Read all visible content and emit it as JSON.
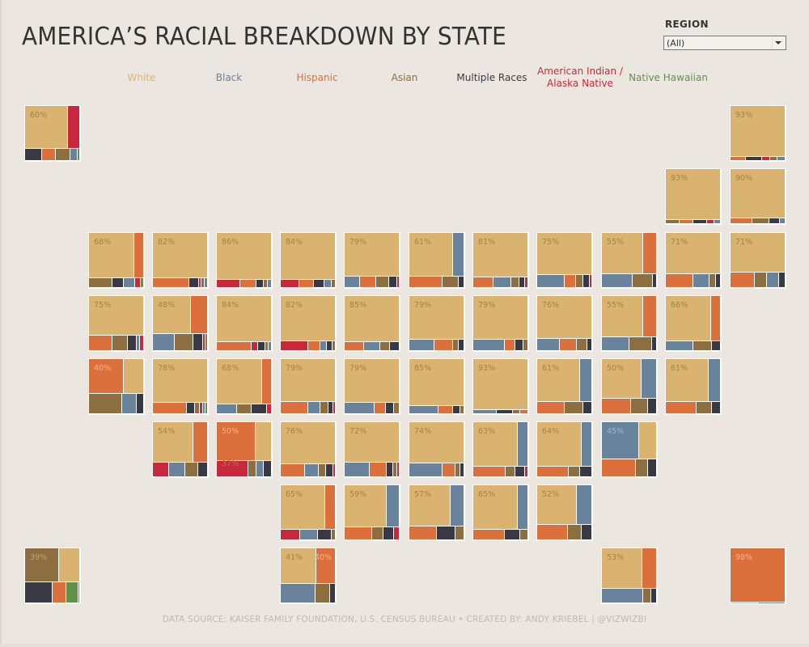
{
  "title": "AMERICA’S RACIAL BREAKDOWN BY STATE",
  "filter": {
    "label": "REGION",
    "selected": "(All)"
  },
  "footer": "DATA SOURCE: KAISER FAMILY FOUNDATION, U.S. CENSUS BUREAU  •  CREATED BY: ANDY KRIEBEL | @VIZWIZBI",
  "colors": {
    "white": "#dbb370",
    "black": "#68839b",
    "hispanic": "#dc703d",
    "asian": "#8c6e40",
    "multiple": "#393946",
    "aian": "#c8283c",
    "nhpi": "#62914b"
  },
  "legend": [
    {
      "key": "white",
      "label": "White"
    },
    {
      "key": "black",
      "label": "Black"
    },
    {
      "key": "hispanic",
      "label": "Hispanic"
    },
    {
      "key": "asian",
      "label": "Asian"
    },
    {
      "key": "multiple",
      "label": "Multiple Races"
    },
    {
      "key": "aian",
      "label": "American Indian / Alaska Native"
    },
    {
      "key": "nhpi",
      "label": "Native Hawaiian"
    }
  ],
  "chart_data": {
    "type": "treemap-tile-grid",
    "title": "AMERICA’S RACIAL BREAKDOWN BY STATE",
    "value_unit": "percent of state population",
    "categories": [
      "white",
      "black",
      "hispanic",
      "asian",
      "multiple",
      "aian",
      "nhpi"
    ],
    "states": [
      {
        "grid": [
          0,
          0
        ],
        "label": "60%",
        "values": {
          "white": 60,
          "aian": 14,
          "multiple": 7,
          "hispanic": 6,
          "asian": 6,
          "black": 3,
          "nhpi": 1
        }
      },
      {
        "grid": [
          11,
          0
        ],
        "label": "93%",
        "values": {
          "white": 93,
          "hispanic": 2,
          "multiple": 2,
          "aian": 1,
          "asian": 1,
          "black": 1
        }
      },
      {
        "grid": [
          10,
          1
        ],
        "label": "93%",
        "values": {
          "white": 93,
          "asian": 2,
          "hispanic": 2,
          "multiple": 2,
          "aian": 1,
          "black": 1
        }
      },
      {
        "grid": [
          11,
          1
        ],
        "label": "90%",
        "values": {
          "white": 90,
          "hispanic": 4,
          "asian": 3,
          "multiple": 2,
          "black": 1
        }
      },
      {
        "grid": [
          1,
          2
        ],
        "label": "68%",
        "values": {
          "white": 68,
          "hispanic": 12,
          "asian": 8,
          "multiple": 4,
          "black": 4,
          "aian": 2,
          "nhpi": 1
        }
      },
      {
        "grid": [
          2,
          2
        ],
        "label": "82%",
        "values": {
          "white": 82,
          "hispanic": 12,
          "multiple": 3,
          "aian": 1,
          "asian": 1,
          "black": 1
        }
      },
      {
        "grid": [
          3,
          2
        ],
        "label": "86%",
        "values": {
          "white": 86,
          "aian": 6,
          "hispanic": 4,
          "multiple": 2,
          "asian": 1,
          "black": 1
        }
      },
      {
        "grid": [
          4,
          2
        ],
        "label": "84%",
        "values": {
          "white": 84,
          "aian": 5,
          "hispanic": 4,
          "multiple": 3,
          "black": 2,
          "asian": 1
        }
      },
      {
        "grid": [
          5,
          2
        ],
        "label": "79%",
        "values": {
          "white": 79,
          "black": 6,
          "hispanic": 6,
          "asian": 5,
          "multiple": 3,
          "aian": 1
        }
      },
      {
        "grid": [
          6,
          2
        ],
        "label": "61%",
        "values": {
          "white": 61,
          "black": 15,
          "hispanic": 12,
          "asian": 6,
          "multiple": 2
        }
      },
      {
        "grid": [
          7,
          2
        ],
        "label": "81%",
        "values": {
          "white": 81,
          "hispanic": 7,
          "black": 6,
          "asian": 3,
          "multiple": 2,
          "aian": 1
        }
      },
      {
        "grid": [
          8,
          2
        ],
        "label": "75%",
        "values": {
          "white": 75,
          "black": 12,
          "hispanic": 5,
          "asian": 3,
          "multiple": 3,
          "aian": 1
        }
      },
      {
        "grid": [
          9,
          2
        ],
        "label": "55%",
        "values": {
          "white": 55,
          "hispanic": 19,
          "black": 14,
          "asian": 9,
          "multiple": 2
        }
      },
      {
        "grid": [
          10,
          2
        ],
        "label": "71%",
        "values": {
          "white": 71,
          "hispanic": 12,
          "black": 7,
          "asian": 3,
          "multiple": 2
        }
      },
      {
        "grid": [
          11,
          2
        ],
        "label": "71%",
        "values": {
          "white": 71,
          "hispanic": 12,
          "asian": 6,
          "black": 6,
          "multiple": 3
        }
      },
      {
        "grid": [
          1,
          3
        ],
        "label": "75%",
        "values": {
          "white": 75,
          "hispanic": 13,
          "asian": 8,
          "multiple": 5,
          "black": 2,
          "aian": 2
        }
      },
      {
        "grid": [
          2,
          3
        ],
        "label": "48%",
        "values": {
          "white": 48,
          "hispanic": 28,
          "black": 9,
          "asian": 8,
          "multiple": 4,
          "aian": 1,
          "nhpi": 1
        }
      },
      {
        "grid": [
          3,
          3
        ],
        "label": "84%",
        "values": {
          "white": 84,
          "hispanic": 10,
          "aian": 2,
          "multiple": 2,
          "asian": 1,
          "black": 1
        }
      },
      {
        "grid": [
          4,
          3
        ],
        "label": "82%",
        "values": {
          "white": 82,
          "aian": 9,
          "hispanic": 4,
          "black": 2,
          "multiple": 2,
          "asian": 1
        }
      },
      {
        "grid": [
          5,
          3
        ],
        "label": "85%",
        "values": {
          "white": 85,
          "hispanic": 6,
          "black": 5,
          "asian": 3,
          "multiple": 3
        }
      },
      {
        "grid": [
          6,
          3
        ],
        "label": "79%",
        "values": {
          "white": 79,
          "black": 9,
          "hispanic": 7,
          "asian": 2,
          "multiple": 2
        }
      },
      {
        "grid": [
          7,
          3
        ],
        "label": "79%",
        "values": {
          "white": 79,
          "black": 12,
          "hispanic": 4,
          "multiple": 3,
          "asian": 2
        }
      },
      {
        "grid": [
          8,
          3
        ],
        "label": "76%",
        "values": {
          "white": 76,
          "black": 9,
          "hispanic": 7,
          "asian": 4,
          "multiple": 2
        }
      },
      {
        "grid": [
          9,
          3
        ],
        "label": "55%",
        "values": {
          "white": 55,
          "hispanic": 19,
          "black": 12,
          "asian": 10,
          "multiple": 2
        }
      },
      {
        "grid": [
          10,
          3
        ],
        "label": "66%",
        "values": {
          "white": 66,
          "hispanic": 15,
          "black": 9,
          "asian": 6,
          "multiple": 3
        }
      },
      {
        "grid": [
          1,
          4
        ],
        "label": "40%",
        "labelOn": "hispanic",
        "values": {
          "hispanic": 40,
          "white": 38,
          "asian": 14,
          "black": 6,
          "multiple": 3
        }
      },
      {
        "grid": [
          2,
          4
        ],
        "label": "78%",
        "values": {
          "white": 78,
          "hispanic": 13,
          "multiple": 3,
          "asian": 2,
          "aian": 1,
          "black": 1,
          "nhpi": 1
        }
      },
      {
        "grid": [
          3,
          4
        ],
        "label": "68%",
        "values": {
          "white": 68,
          "hispanic": 22,
          "black": 4,
          "asian": 3,
          "multiple": 3,
          "aian": 1
        }
      },
      {
        "grid": [
          4,
          4
        ],
        "label": "79%",
        "values": {
          "white": 79,
          "hispanic": 11,
          "black": 5,
          "asian": 3,
          "multiple": 2,
          "aian": 1
        }
      },
      {
        "grid": [
          5,
          4
        ],
        "label": "79%",
        "values": {
          "white": 79,
          "black": 11,
          "hispanic": 4,
          "multiple": 3,
          "asian": 2
        }
      },
      {
        "grid": [
          6,
          4
        ],
        "label": "85%",
        "values": {
          "white": 85,
          "black": 8,
          "hispanic": 4,
          "asian": 1,
          "multiple": 2
        }
      },
      {
        "grid": [
          7,
          4
        ],
        "label": "93%",
        "values": {
          "white": 93,
          "black": 3,
          "multiple": 2,
          "asian": 1,
          "hispanic": 1
        }
      },
      {
        "grid": [
          8,
          4
        ],
        "label": "61%",
        "values": {
          "white": 61,
          "black": 20,
          "hispanic": 9,
          "asian": 6,
          "multiple": 3
        }
      },
      {
        "grid": [
          9,
          4
        ],
        "label": "50%",
        "values": {
          "white": 50,
          "black": 26,
          "hispanic": 10,
          "asian": 6,
          "multiple": 3
        }
      },
      {
        "grid": [
          10,
          4
        ],
        "label": "61%",
        "values": {
          "white": 61,
          "black": 20,
          "hispanic": 10,
          "asian": 5,
          "multiple": 3
        }
      },
      {
        "grid": [
          2,
          5
        ],
        "label": "54%",
        "values": {
          "white": 54,
          "hispanic": 28,
          "aian": 5,
          "black": 5,
          "asian": 4,
          "multiple": 3
        }
      },
      {
        "grid": [
          3,
          5
        ],
        "label": "50%",
        "label2": "37%",
        "labelOn": "hispanic",
        "values": {
          "hispanic": 50,
          "white": 37,
          "aian": 8,
          "asian": 2,
          "black": 2,
          "multiple": 2
        }
      },
      {
        "grid": [
          4,
          5
        ],
        "label": "76%",
        "values": {
          "white": 76,
          "hispanic": 10,
          "black": 6,
          "asian": 3,
          "multiple": 3,
          "aian": 1
        }
      },
      {
        "grid": [
          5,
          5
        ],
        "label": "72%",
        "values": {
          "white": 72,
          "black": 12,
          "hispanic": 8,
          "asian": 2,
          "multiple": 3,
          "aian": 1
        }
      },
      {
        "grid": [
          6,
          5
        ],
        "label": "74%",
        "values": {
          "white": 74,
          "black": 15,
          "hispanic": 6,
          "asian": 2,
          "multiple": 2
        }
      },
      {
        "grid": [
          7,
          5
        ],
        "label": "63%",
        "values": {
          "white": 63,
          "black": 18,
          "hispanic": 10,
          "asian": 3,
          "multiple": 3,
          "aian": 1
        }
      },
      {
        "grid": [
          8,
          5
        ],
        "label": "64%",
        "values": {
          "white": 64,
          "black": 21,
          "hispanic": 8,
          "asian": 3,
          "multiple": 3
        }
      },
      {
        "grid": [
          9,
          5
        ],
        "label": "45%",
        "labelOn": "black",
        "values": {
          "black": 45,
          "white": 36,
          "hispanic": 11,
          "asian": 4,
          "multiple": 3
        }
      },
      {
        "grid": [
          4,
          6
        ],
        "label": "65%",
        "values": {
          "white": 65,
          "hispanic": 9,
          "aian": 9,
          "black": 8,
          "multiple": 6,
          "asian": 2
        }
      },
      {
        "grid": [
          5,
          6
        ],
        "label": "59%",
        "values": {
          "white": 59,
          "black": 32,
          "hispanic": 5,
          "asian": 2,
          "multiple": 2,
          "aian": 1
        }
      },
      {
        "grid": [
          6,
          6
        ],
        "label": "57%",
        "values": {
          "white": 57,
          "black": 37,
          "hispanic": 3,
          "asian": 1,
          "multiple": 2
        }
      },
      {
        "grid": [
          7,
          6
        ],
        "label": "65%",
        "values": {
          "white": 65,
          "black": 28,
          "hispanic": 4,
          "multiple": 2,
          "asian": 1
        }
      },
      {
        "grid": [
          8,
          6
        ],
        "label": "52%",
        "values": {
          "white": 52,
          "black": 31,
          "hispanic": 9,
          "asian": 4,
          "multiple": 3
        }
      },
      {
        "grid": [
          0,
          7
        ],
        "label": "39%",
        "labelOn": "asian",
        "values": {
          "asian": 39,
          "white": 22,
          "multiple": 20,
          "hispanic": 10,
          "nhpi": 9,
          "black": 1
        }
      },
      {
        "grid": [
          4,
          7
        ],
        "label": "41%",
        "label2": "40%",
        "values": {
          "white": 41,
          "hispanic": 40,
          "black": 12,
          "asian": 5,
          "multiple": 2
        }
      },
      {
        "grid": [
          9,
          7
        ],
        "label": "53%",
        "values": {
          "white": 53,
          "hispanic": 26,
          "black": 15,
          "asian": 3,
          "multiple": 2
        }
      },
      {
        "grid": [
          11,
          7
        ],
        "label": "98%",
        "labelOn": "hispanic",
        "values": {
          "hispanic": 98,
          "white": 1,
          "black": 1
        }
      }
    ]
  }
}
